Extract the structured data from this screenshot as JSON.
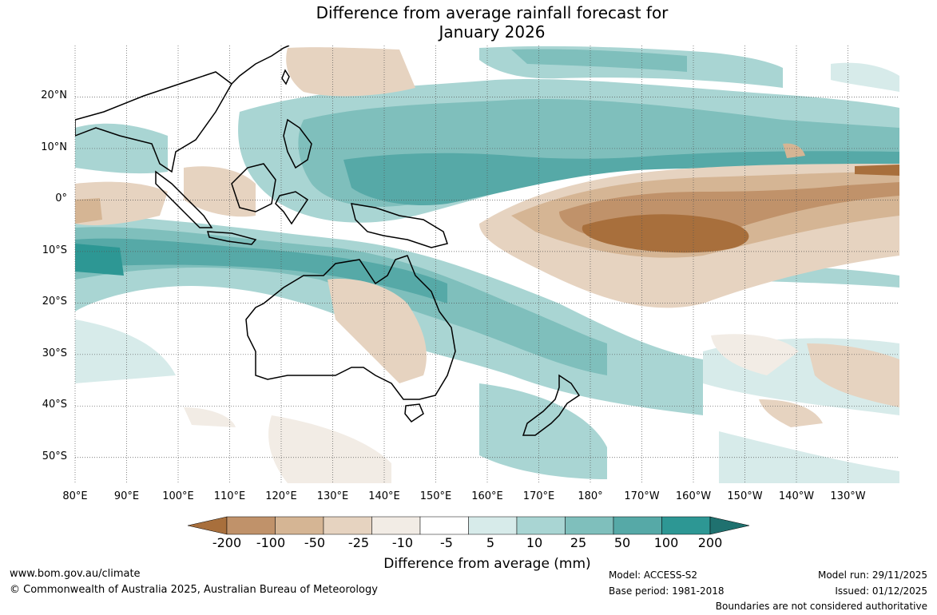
{
  "title": {
    "line1": "Difference from average rainfall forecast for",
    "line2": "January 2026"
  },
  "map": {
    "lat_ticks": [
      "20°N",
      "10°N",
      "0°",
      "10°S",
      "20°S",
      "30°S",
      "40°S",
      "50°S"
    ],
    "lon_ticks": [
      "80°E",
      "90°E",
      "100°E",
      "110°E",
      "120°E",
      "130°E",
      "140°E",
      "150°E",
      "160°E",
      "170°E",
      "180°",
      "170°W",
      "160°W",
      "150°W",
      "140°W",
      "130°W"
    ],
    "extent": {
      "lon_min": 80,
      "lon_max": 240,
      "lat_min": -55,
      "lat_max": 30
    }
  },
  "legend": {
    "title": "Difference from average (mm)",
    "labels": [
      "-200",
      "-100",
      "-50",
      "-25",
      "-10",
      "-5",
      "5",
      "10",
      "25",
      "50",
      "100",
      "200"
    ],
    "colors": [
      "#a86f3c",
      "#c0926a",
      "#d5b594",
      "#e6d3c0",
      "#f2ece5",
      "#ffffff",
      "#d7ebea",
      "#a9d5d3",
      "#7fbfbc",
      "#56a9a7",
      "#2d9794",
      "#1f716f"
    ]
  },
  "footer": {
    "website": "www.bom.gov.au/climate",
    "copyright": "© Commonwealth of Australia 2025, Australian Bureau of Meteorology",
    "model": "Model: ACCESS-S2",
    "base_period": "Base period: 1981-2018",
    "model_run": "Model run: 29/11/2025",
    "issued": "Issued: 01/12/2025",
    "disclaimer": "Boundaries are not considered authoritative"
  }
}
